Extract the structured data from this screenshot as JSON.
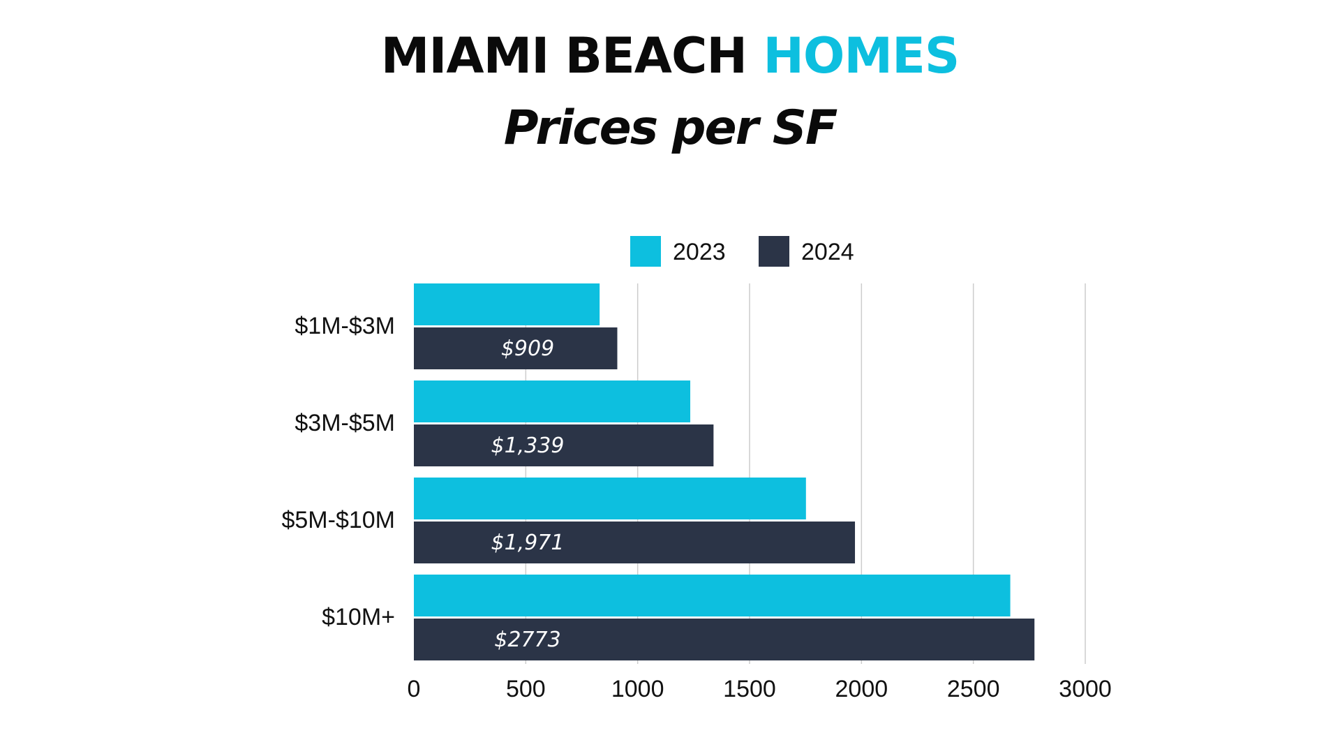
{
  "header": {
    "title_main": "MIAMI BEACH",
    "title_accent": "HOMES",
    "subtitle": "Prices per SF"
  },
  "colors": {
    "series_2023": "#0dbfdf",
    "series_2024": "#2b3447",
    "gridline": "#cccccc",
    "title": "#0a0a0a",
    "accent": "#0dbfdf"
  },
  "chart_data": {
    "type": "bar",
    "orientation": "horizontal",
    "categories": [
      "$1M-$3M",
      "$3M-$5M",
      "$5M-$10M",
      "$10M+"
    ],
    "series": [
      {
        "name": "2023",
        "values": [
          830,
          1235,
          1752,
          2665
        ],
        "labels": [
          "",
          "",
          "",
          ""
        ]
      },
      {
        "name": "2024",
        "values": [
          909,
          1339,
          1971,
          2773
        ],
        "labels": [
          "$909",
          "$1,339",
          "$1,971",
          "$2773"
        ]
      }
    ],
    "xlim": [
      0,
      3000
    ],
    "xticks": [
      0,
      500,
      1000,
      1500,
      2000,
      2500,
      3000
    ],
    "grid": true,
    "legend_position": "top"
  }
}
